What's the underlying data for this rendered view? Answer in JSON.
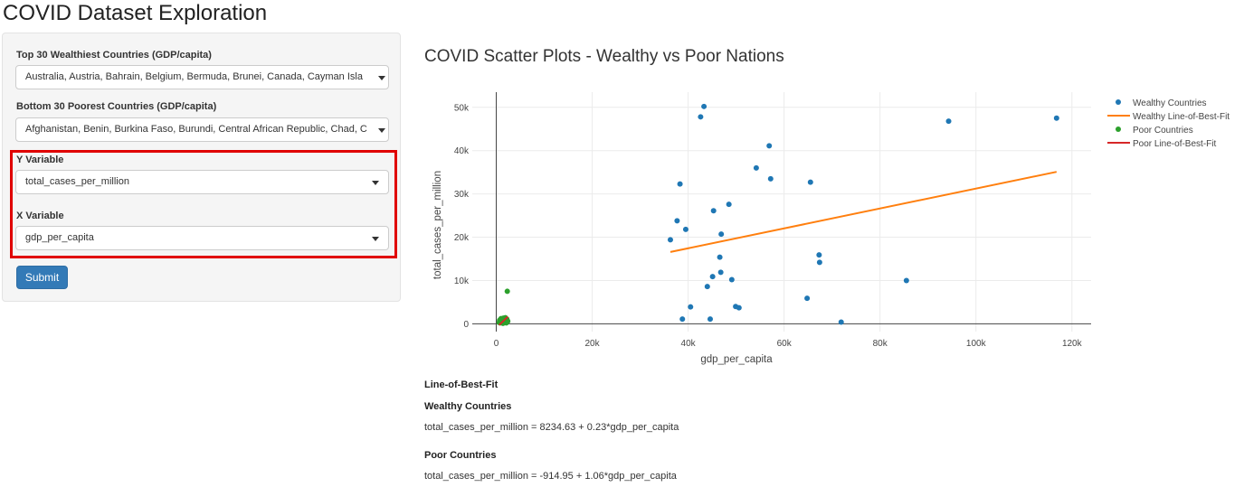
{
  "app": {
    "title": "COVID Dataset Exploration"
  },
  "sidebar": {
    "wealthy_label": "Top 30 Wealthiest Countries (GDP/capita)",
    "wealthy_value": "Australia, Austria, Bahrain, Belgium, Bermuda, Brunei, Canada, Cayman Isla",
    "poor_label": "Bottom 30 Poorest Countries (GDP/capita)",
    "poor_value": "Afghanistan, Benin, Burkina Faso, Burundi, Central African Republic, Chad, C",
    "y_label": "Y Variable",
    "y_value": "total_cases_per_million",
    "x_label": "X Variable",
    "x_value": "gdp_per_capita",
    "submit_label": "Submit"
  },
  "main": {
    "plot_title": "COVID Scatter Plots - Wealthy vs Poor Nations",
    "best_fit": {
      "heading": "Line-of-Best-Fit",
      "wealthy_heading": "Wealthy Countries",
      "wealthy_equation": "total_cases_per_million = 8234.63 + 0.23*gdp_per_capita",
      "poor_heading": "Poor Countries",
      "poor_equation": "total_cases_per_million = -914.95 + 1.06*gdp_per_capita"
    }
  },
  "colors": {
    "wealthy": "#1f77b4",
    "wealthy_line": "#ff7f0e",
    "poor": "#2ca02c",
    "poor_line": "#d62728",
    "grid": "#ebebeb",
    "zeroline": "#444444"
  },
  "chart_data": {
    "type": "scatter",
    "xlabel": "gdp_per_capita",
    "ylabel": "total_cases_per_million",
    "xlim": [
      -5000,
      124000
    ],
    "ylim": [
      -1800,
      53500
    ],
    "xticks": [
      0,
      20000,
      40000,
      60000,
      80000,
      100000,
      120000
    ],
    "xtick_labels": [
      "0",
      "20k",
      "40k",
      "60k",
      "80k",
      "100k",
      "120k"
    ],
    "yticks": [
      0,
      10000,
      20000,
      30000,
      40000,
      50000
    ],
    "ytick_labels": [
      "0",
      "10k",
      "20k",
      "30k",
      "40k",
      "50k"
    ],
    "grid": true,
    "legend_position": "top-right",
    "series": [
      {
        "name": "Wealthy Countries",
        "mode": "markers",
        "color": "#1f77b4",
        "points": [
          [
            43300,
            50200
          ],
          [
            42600,
            47800
          ],
          [
            94300,
            46800
          ],
          [
            116800,
            47500
          ],
          [
            56900,
            41100
          ],
          [
            54200,
            36000
          ],
          [
            57200,
            33500
          ],
          [
            65500,
            32700
          ],
          [
            38300,
            32300
          ],
          [
            48500,
            27600
          ],
          [
            45300,
            26100
          ],
          [
            37700,
            23800
          ],
          [
            39500,
            21800
          ],
          [
            36300,
            19400
          ],
          [
            46900,
            20700
          ],
          [
            67300,
            15900
          ],
          [
            67400,
            14200
          ],
          [
            46600,
            15400
          ],
          [
            46800,
            11900
          ],
          [
            45100,
            10900
          ],
          [
            49100,
            10200
          ],
          [
            85500,
            10000
          ],
          [
            44000,
            8600
          ],
          [
            64800,
            5900
          ],
          [
            40500,
            3900
          ],
          [
            49900,
            4000
          ],
          [
            50600,
            3700
          ],
          [
            38800,
            1100
          ],
          [
            44600,
            1100
          ],
          [
            71900,
            400
          ]
        ]
      },
      {
        "name": "Wealthy Line-of-Best-Fit",
        "mode": "lines",
        "color": "#ff7f0e",
        "x": [
          36300,
          116800
        ],
        "y": [
          16583.6,
          35098.6
        ]
      },
      {
        "name": "Poor Countries",
        "mode": "markers",
        "color": "#2ca02c",
        "points": [
          [
            2300,
            7500
          ],
          [
            700,
            800
          ],
          [
            1000,
            1200
          ],
          [
            1200,
            400
          ],
          [
            1500,
            1300
          ],
          [
            1700,
            900
          ],
          [
            2000,
            700
          ],
          [
            2200,
            1100
          ],
          [
            800,
            200
          ],
          [
            1100,
            500
          ],
          [
            1300,
            900
          ],
          [
            1600,
            300
          ],
          [
            1800,
            1000
          ],
          [
            2100,
            200
          ],
          [
            2400,
            600
          ],
          [
            900,
            1000
          ],
          [
            1400,
            100
          ],
          [
            1900,
            1400
          ],
          [
            600,
            300
          ],
          [
            1000,
            700
          ]
        ]
      },
      {
        "name": "Poor Line-of-Best-Fit",
        "mode": "lines",
        "color": "#d62728",
        "x": [
          600,
          2400
        ],
        "y": [
          -279,
          1629
        ]
      }
    ]
  }
}
